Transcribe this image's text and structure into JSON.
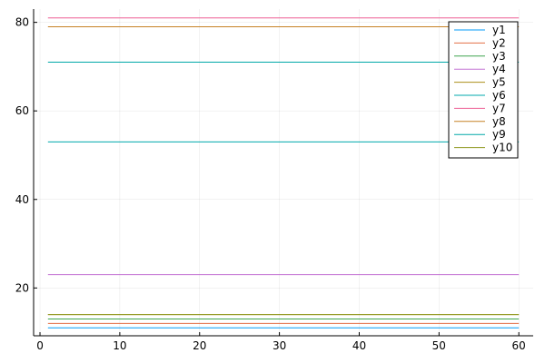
{
  "chart_data": {
    "type": "line",
    "title": "",
    "xlabel": "",
    "ylabel": "",
    "xlim": [
      -0.8,
      61.8
    ],
    "ylim": [
      9.2,
      83.0
    ],
    "xticks": [
      0,
      10,
      20,
      30,
      40,
      50,
      60
    ],
    "yticks": [
      20,
      40,
      60,
      80
    ],
    "xtick_labels": [
      "0",
      "10",
      "20",
      "30",
      "40",
      "50",
      "60"
    ],
    "ytick_labels": [
      "20",
      "40",
      "60",
      "80"
    ],
    "grid": true,
    "legend_position": "top-right",
    "x": [
      1,
      60
    ],
    "series": [
      {
        "name": "y1",
        "color": "#009af9",
        "values": [
          11,
          11
        ]
      },
      {
        "name": "y2",
        "color": "#e26f46",
        "values": [
          12,
          12
        ]
      },
      {
        "name": "y3",
        "color": "#3ea44e",
        "values": [
          13,
          13
        ]
      },
      {
        "name": "y4",
        "color": "#c270d3",
        "values": [
          23,
          23
        ]
      },
      {
        "name": "y5",
        "color": "#ac8e18",
        "values": [
          14,
          14
        ]
      },
      {
        "name": "y6",
        "color": "#00a9ad",
        "values": [
          53,
          53
        ]
      },
      {
        "name": "y7",
        "color": "#ed5e93",
        "values": [
          81,
          81
        ]
      },
      {
        "name": "y8",
        "color": "#c68125",
        "values": [
          79,
          79
        ]
      },
      {
        "name": "y9",
        "color": "#00a8a8",
        "values": [
          71,
          71
        ]
      },
      {
        "name": "y10",
        "color": "#8e971e",
        "values": [
          14,
          14
        ]
      }
    ]
  }
}
